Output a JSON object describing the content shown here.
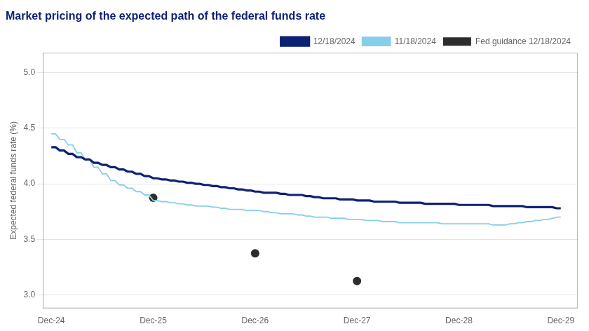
{
  "chart_data": {
    "type": "line",
    "title": "Market pricing of the expected path of the federal funds rate",
    "title_color": "#0d2275",
    "y_label": "Expected federal funds rate (%)",
    "xlim": [
      -1,
      62
    ],
    "xticks": [
      {
        "value": 0,
        "label": "Dec-24"
      },
      {
        "value": 12,
        "label": "Dec-25"
      },
      {
        "value": 24,
        "label": "Dec-26"
      },
      {
        "value": 36,
        "label": "Dec-27"
      },
      {
        "value": 48,
        "label": "Dec-28"
      },
      {
        "value": 60,
        "label": "Dec-29"
      }
    ],
    "ylim": [
      2.88,
      5.18
    ],
    "yticks": [
      {
        "value": 3.0,
        "label": "3.0"
      },
      3.5,
      {
        "value": 4.0,
        "label": "4.0"
      },
      4.5,
      {
        "value": 5.0,
        "label": "5.0"
      }
    ],
    "grid": "y",
    "legend": "upper right",
    "series": [
      {
        "name": "12/18/2024",
        "type": "line",
        "color": "#0d2275",
        "x": [
          0,
          0.5,
          1,
          1.5,
          2,
          2.5,
          3,
          3.5,
          4,
          4.5,
          5,
          5.5,
          6,
          6.5,
          7,
          7.5,
          8,
          8.5,
          9,
          9.5,
          10,
          10.5,
          11,
          11.5,
          12,
          12.5,
          13,
          13.5,
          14,
          14.5,
          15,
          15.5,
          16,
          16.5,
          17,
          17.5,
          18,
          18.5,
          19,
          19.5,
          20,
          20.5,
          21,
          21.5,
          22,
          22.5,
          23,
          23.5,
          24,
          24.5,
          25,
          25.5,
          26,
          26.5,
          27,
          27.5,
          28,
          28.5,
          29,
          29.5,
          30,
          30.5,
          31,
          31.5,
          32,
          32.5,
          33,
          33.5,
          34,
          34.5,
          35,
          35.5,
          36,
          36.5,
          37,
          37.5,
          38,
          38.5,
          39,
          39.5,
          40,
          40.5,
          41,
          41.5,
          42,
          42.5,
          43,
          43.5,
          44,
          44.5,
          45,
          45.5,
          46,
          46.5,
          47,
          47.5,
          48,
          48.5,
          49,
          49.5,
          50,
          50.5,
          51,
          51.5,
          52,
          52.5,
          53,
          53.5,
          54,
          54.5,
          55,
          55.5,
          56,
          56.5,
          57,
          57.5,
          58,
          58.5,
          59,
          59.5,
          60
        ],
        "values": [
          4.33,
          4.33,
          4.3,
          4.3,
          4.27,
          4.27,
          4.24,
          4.24,
          4.22,
          4.22,
          4.19,
          4.19,
          4.17,
          4.17,
          4.15,
          4.15,
          4.13,
          4.13,
          4.11,
          4.11,
          4.09,
          4.09,
          4.07,
          4.07,
          4.05,
          4.05,
          4.04,
          4.04,
          4.03,
          4.03,
          4.02,
          4.02,
          4.01,
          4.01,
          4.0,
          4.0,
          3.99,
          3.99,
          3.98,
          3.98,
          3.97,
          3.97,
          3.96,
          3.96,
          3.95,
          3.95,
          3.94,
          3.94,
          3.93,
          3.93,
          3.92,
          3.92,
          3.92,
          3.92,
          3.91,
          3.91,
          3.9,
          3.9,
          3.9,
          3.9,
          3.89,
          3.89,
          3.88,
          3.88,
          3.87,
          3.87,
          3.87,
          3.87,
          3.86,
          3.86,
          3.86,
          3.86,
          3.85,
          3.85,
          3.85,
          3.85,
          3.84,
          3.84,
          3.84,
          3.84,
          3.84,
          3.84,
          3.83,
          3.83,
          3.83,
          3.83,
          3.83,
          3.83,
          3.82,
          3.82,
          3.82,
          3.82,
          3.82,
          3.82,
          3.82,
          3.82,
          3.81,
          3.81,
          3.81,
          3.81,
          3.81,
          3.81,
          3.81,
          3.81,
          3.8,
          3.8,
          3.8,
          3.8,
          3.8,
          3.8,
          3.8,
          3.8,
          3.79,
          3.79,
          3.79,
          3.79,
          3.79,
          3.79,
          3.79,
          3.78,
          3.78
        ]
      },
      {
        "name": "11/18/2024",
        "type": "line",
        "color": "#87ceeb",
        "x": [
          0,
          0.5,
          1,
          1.5,
          2,
          2.5,
          3,
          3.5,
          4,
          4.5,
          5,
          5.5,
          6,
          6.5,
          7,
          7.5,
          8,
          8.5,
          9,
          9.5,
          10,
          10.5,
          11,
          11.5,
          12,
          12.5,
          13,
          13.5,
          14,
          14.5,
          15,
          15.5,
          16,
          16.5,
          17,
          17.5,
          18,
          18.5,
          19,
          19.5,
          20,
          20.5,
          21,
          21.5,
          22,
          22.5,
          23,
          23.5,
          24,
          24.5,
          25,
          25.5,
          26,
          26.5,
          27,
          27.5,
          28,
          28.5,
          29,
          29.5,
          30,
          30.5,
          31,
          31.5,
          32,
          32.5,
          33,
          33.5,
          34,
          34.5,
          35,
          35.5,
          36,
          36.5,
          37,
          37.5,
          38,
          38.5,
          39,
          39.5,
          40,
          40.5,
          41,
          41.5,
          42,
          42.5,
          43,
          43.5,
          44,
          44.5,
          45,
          45.5,
          46,
          46.5,
          47,
          47.5,
          48,
          48.5,
          49,
          49.5,
          50,
          50.5,
          51,
          51.5,
          52,
          52.5,
          53,
          53.5,
          54,
          54.5,
          55,
          55.5,
          56,
          56.5,
          57,
          57.5,
          58,
          58.5,
          59,
          59.5,
          60
        ],
        "values": [
          4.45,
          4.45,
          4.4,
          4.4,
          4.35,
          4.35,
          4.28,
          4.28,
          4.22,
          4.22,
          4.15,
          4.15,
          4.09,
          4.09,
          4.03,
          4.03,
          3.99,
          3.99,
          3.96,
          3.96,
          3.93,
          3.93,
          3.9,
          3.9,
          3.85,
          3.85,
          3.84,
          3.84,
          3.83,
          3.83,
          3.82,
          3.82,
          3.81,
          3.81,
          3.8,
          3.8,
          3.8,
          3.8,
          3.79,
          3.79,
          3.78,
          3.78,
          3.77,
          3.77,
          3.77,
          3.77,
          3.76,
          3.76,
          3.76,
          3.76,
          3.75,
          3.75,
          3.74,
          3.74,
          3.73,
          3.73,
          3.73,
          3.73,
          3.72,
          3.72,
          3.71,
          3.71,
          3.7,
          3.7,
          3.7,
          3.7,
          3.69,
          3.69,
          3.69,
          3.69,
          3.68,
          3.68,
          3.68,
          3.68,
          3.67,
          3.67,
          3.67,
          3.67,
          3.66,
          3.66,
          3.66,
          3.66,
          3.65,
          3.65,
          3.65,
          3.65,
          3.65,
          3.65,
          3.65,
          3.65,
          3.65,
          3.65,
          3.64,
          3.64,
          3.64,
          3.64,
          3.64,
          3.64,
          3.64,
          3.64,
          3.64,
          3.64,
          3.64,
          3.64,
          3.63,
          3.63,
          3.63,
          3.63,
          3.64,
          3.64,
          3.65,
          3.65,
          3.66,
          3.66,
          3.67,
          3.67,
          3.68,
          3.68,
          3.69,
          3.7,
          3.7
        ]
      },
      {
        "name": "Fed guidance 12/18/2024",
        "type": "scatter",
        "marker": "circle",
        "color": "#2d2d2d",
        "x": [
          12,
          24,
          36
        ],
        "values": [
          3.875,
          3.375,
          3.125
        ]
      }
    ]
  }
}
